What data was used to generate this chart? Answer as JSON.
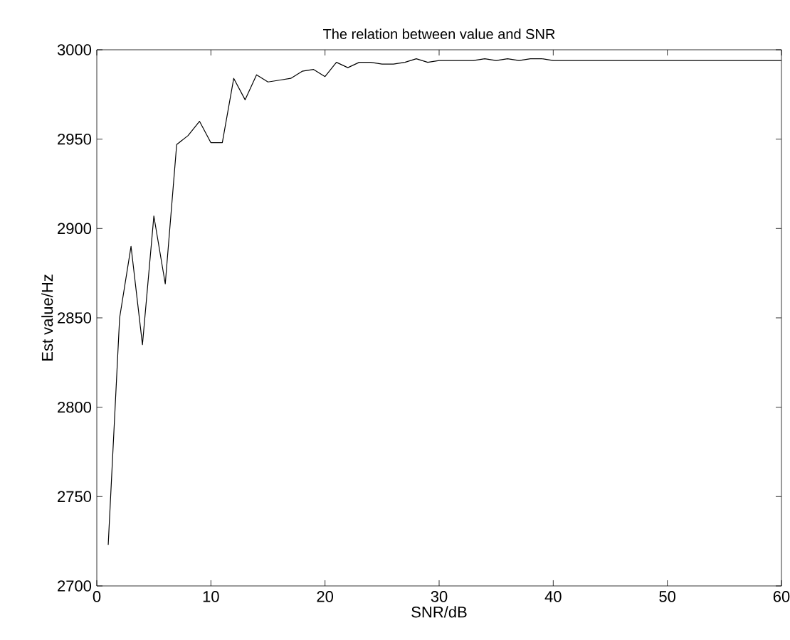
{
  "chart_data": {
    "type": "line",
    "title": "The relation between value and SNR",
    "xlabel": "SNR/dB",
    "ylabel": "Est value/Hz",
    "x": [
      1,
      2,
      3,
      4,
      5,
      6,
      7,
      8,
      9,
      10,
      11,
      12,
      13,
      14,
      15,
      16,
      17,
      18,
      19,
      20,
      21,
      22,
      23,
      24,
      25,
      26,
      27,
      28,
      29,
      30,
      31,
      32,
      33,
      34,
      35,
      36,
      37,
      38,
      39,
      40,
      60
    ],
    "series": [
      {
        "color": "#000000",
        "values": [
          2723,
          2850,
          2890,
          2835,
          2907,
          2869,
          2947,
          2952,
          2960,
          2948,
          2948,
          2984,
          2972,
          2986,
          2982,
          2983,
          2984,
          2988,
          2989,
          2985,
          2993,
          2990,
          2993,
          2993,
          2992,
          2992,
          2993,
          2995,
          2993,
          2994,
          2994,
          2994,
          2994,
          2995,
          2994,
          2995,
          2994,
          2995,
          2995,
          2994,
          2994
        ]
      }
    ],
    "xlim": [
      0,
      60
    ],
    "ylim": [
      2700,
      3000
    ],
    "xticks": [
      0,
      10,
      20,
      30,
      40,
      50,
      60
    ],
    "yticks": [
      2700,
      2750,
      2800,
      2850,
      2900,
      2950,
      3000
    ],
    "marker": "none",
    "line_style": "solid"
  }
}
